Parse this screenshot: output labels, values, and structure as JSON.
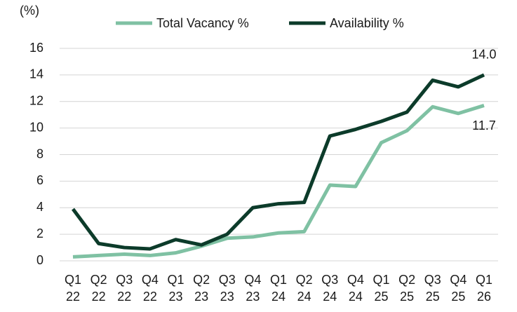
{
  "chart_data": {
    "type": "line",
    "y_label": "(%)",
    "categories": [
      "Q1 22",
      "Q2 22",
      "Q3 22",
      "Q4 22",
      "Q1 23",
      "Q2 23",
      "Q3 23",
      "Q4 23",
      "Q1 24",
      "Q2 24",
      "Q3 24",
      "Q4 24",
      "Q1 25",
      "Q2 25",
      "Q3 25",
      "Q4 25",
      "Q1 26"
    ],
    "series": [
      {
        "name": "Total Vacancy %",
        "color": "#7fc1a3",
        "values": [
          0.3,
          0.4,
          0.5,
          0.4,
          0.6,
          1.1,
          1.7,
          1.8,
          2.1,
          2.2,
          5.7,
          5.6,
          8.9,
          9.8,
          11.6,
          11.1,
          11.7
        ],
        "value_labels": [
          null,
          null,
          null,
          null,
          null,
          null,
          null,
          null,
          null,
          null,
          null,
          null,
          null,
          null,
          null,
          null,
          "11.7"
        ]
      },
      {
        "name": "Availability %",
        "color": "#0c3b2a",
        "values": [
          3.9,
          1.3,
          1.0,
          0.9,
          1.6,
          1.2,
          2.0,
          4.0,
          4.3,
          4.4,
          9.4,
          9.9,
          10.5,
          11.2,
          13.6,
          13.1,
          14.0
        ],
        "value_labels": [
          null,
          null,
          null,
          null,
          null,
          null,
          null,
          null,
          null,
          null,
          null,
          null,
          null,
          null,
          null,
          null,
          "14.0"
        ]
      }
    ],
    "ylim": [
      0,
      16
    ],
    "yticks": [
      0,
      2,
      4,
      6,
      8,
      10,
      12,
      14,
      16
    ],
    "grid": true
  }
}
